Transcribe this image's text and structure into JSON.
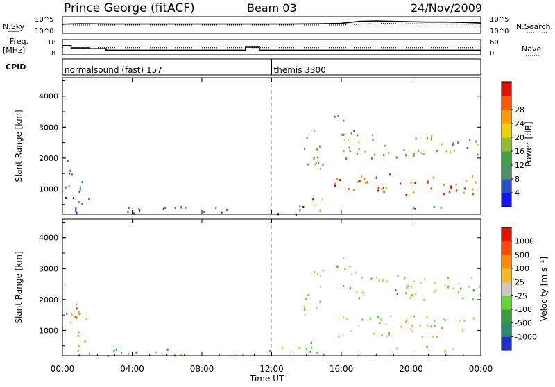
{
  "header": {
    "station": "Prince George (fitACF)",
    "beam": "Beam 03",
    "date": "24/Nov/2009"
  },
  "chart_data": [
    {
      "type": "line",
      "name_panel": "noise",
      "left_label": "N.Sky",
      "right_label": "N.Search",
      "left_ticks": [
        "10^5",
        "10^0"
      ],
      "right_ticks": [
        "10^5",
        "10^0"
      ],
      "series": [
        {
          "name": "N.Sky",
          "style": "solid",
          "x": [
            0,
            1,
            2,
            3,
            4,
            5,
            6,
            7,
            8,
            9,
            10,
            11,
            12,
            13,
            14,
            15,
            16,
            17,
            18,
            19,
            20,
            21,
            22,
            23,
            24
          ],
          "values_rel": [
            0.55,
            0.58,
            0.57,
            0.56,
            0.56,
            0.56,
            0.56,
            0.56,
            0.56,
            0.56,
            0.56,
            0.56,
            0.56,
            0.56,
            0.57,
            0.58,
            0.6,
            0.72,
            0.75,
            0.72,
            0.7,
            0.68,
            0.68,
            0.66,
            0.62
          ]
        },
        {
          "name": "N.Search",
          "style": "dotted",
          "x": [
            0,
            4,
            8,
            12,
            16,
            18,
            20,
            22,
            24
          ],
          "values_rel": [
            0.5,
            0.5,
            0.5,
            0.5,
            0.5,
            0.6,
            0.58,
            0.56,
            0.55
          ]
        }
      ]
    },
    {
      "type": "line",
      "name_panel": "frequency",
      "left_label": "Freq.",
      "left_unit": "[MHz]",
      "right_label": "Nave",
      "left_ticks": [
        "18",
        "8"
      ],
      "right_ticks": [
        "60",
        "0"
      ],
      "series": [
        {
          "name": "Freq.",
          "style": "solid",
          "x": [
            0,
            0.5,
            1.5,
            2.5,
            3,
            10,
            10.5,
            11.3,
            12,
            24
          ],
          "values": [
            14,
            12.5,
            12,
            11,
            11,
            11,
            13,
            11,
            11,
            11
          ]
        },
        {
          "name": "Nave",
          "style": "dotted",
          "x": [
            0,
            24
          ],
          "values": [
            28,
            28
          ]
        }
      ]
    },
    {
      "type": "table",
      "name_panel": "cpid",
      "label": "CPID",
      "segments": [
        {
          "start": 0,
          "end": 12,
          "text": "normalsound (fast) 157"
        },
        {
          "start": 12,
          "end": 24,
          "text": "themis 3300"
        }
      ]
    },
    {
      "type": "heatmap",
      "name_panel": "power",
      "ylabel": "Slant Range [km]",
      "xlabel": "Time UT",
      "yticks": [
        1000,
        2000,
        3000,
        4000
      ],
      "ylim": [
        180,
        4600
      ],
      "xlim": [
        0,
        24
      ],
      "colorbar": {
        "label": "Power [dB]",
        "ticks": [
          "4",
          "8",
          "12",
          "16",
          "20",
          "24",
          "28"
        ],
        "colors": [
          "#1414ff",
          "#2850c8",
          "#4f8f6a",
          "#3fa346",
          "#8fbf2f",
          "#f0d000",
          "#ff9a00",
          "#ff5a00",
          "#e81000"
        ]
      },
      "regions": [
        {
          "t0": 0.1,
          "t1": 1.5,
          "r0": 500,
          "r1": 2000,
          "level": 0.2
        },
        {
          "t0": 0.7,
          "t1": 12,
          "r0": 200,
          "r1": 450,
          "level": 0.15
        },
        {
          "t0": 12,
          "t1": 14.5,
          "r0": 200,
          "r1": 500,
          "level": 0.18
        },
        {
          "t0": 14,
          "t1": 15.1,
          "r0": 300,
          "r1": 800,
          "level": 0.75
        },
        {
          "t0": 13.8,
          "t1": 15,
          "r0": 1500,
          "r1": 3000,
          "level": 0.4
        },
        {
          "t0": 15.5,
          "t1": 24,
          "r0": 800,
          "r1": 1500,
          "level": 0.85
        },
        {
          "t0": 16,
          "t1": 24,
          "r0": 2000,
          "r1": 2800,
          "level": 0.45
        },
        {
          "t0": 15.5,
          "t1": 17,
          "r0": 2800,
          "r1": 3400,
          "level": 0.35
        },
        {
          "t0": 19,
          "t1": 23,
          "r0": 350,
          "r1": 500,
          "level": 0.3
        }
      ]
    },
    {
      "type": "heatmap",
      "name_panel": "velocity",
      "ylabel": "Slant Range [km]",
      "xlabel": "Time UT",
      "yticks": [
        1000,
        2000,
        3000,
        4000
      ],
      "ylim": [
        180,
        4600
      ],
      "xlim": [
        0,
        24
      ],
      "xticks": [
        "00:00",
        "04:00",
        "08:00",
        "12:00",
        "16:00",
        "20:00",
        "00:00"
      ],
      "colorbar": {
        "label": "Velocity [m s⁻¹]",
        "ticks": [
          "1000",
          "500",
          "100",
          "25",
          "-25",
          "-100",
          "-500",
          "-1000"
        ],
        "colors": [
          "#1c2fcf",
          "#2a8c6e",
          "#3a9c3a",
          "#63d635",
          "#c8c8c0",
          "#f3b72c",
          "#ff8c00",
          "#ff4a00",
          "#e81200"
        ]
      },
      "regions": [
        {
          "t0": 0.1,
          "t1": 1.5,
          "r0": 500,
          "r1": 2000,
          "level": 0.75
        },
        {
          "t0": 0.7,
          "t1": 12,
          "r0": 200,
          "r1": 450,
          "level": 0.35
        },
        {
          "t0": 12,
          "t1": 14.5,
          "r0": 200,
          "r1": 500,
          "level": 0.45
        },
        {
          "t0": 14,
          "t1": 15.1,
          "r0": 300,
          "r1": 800,
          "level": 0.3
        },
        {
          "t0": 13.8,
          "t1": 15,
          "r0": 1500,
          "r1": 3000,
          "level": 0.45
        },
        {
          "t0": 15.5,
          "t1": 24,
          "r0": 800,
          "r1": 1500,
          "level": 0.5
        },
        {
          "t0": 16,
          "t1": 24,
          "r0": 2000,
          "r1": 2800,
          "level": 0.45
        },
        {
          "t0": 15.5,
          "t1": 17,
          "r0": 2800,
          "r1": 3400,
          "level": 0.4
        },
        {
          "t0": 19,
          "t1": 23,
          "r0": 350,
          "r1": 500,
          "level": 0.3
        }
      ]
    }
  ]
}
